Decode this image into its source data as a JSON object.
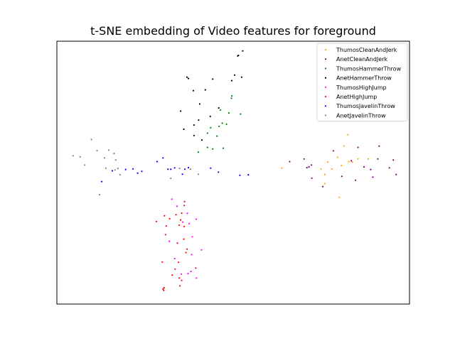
{
  "chart_data": {
    "type": "scatter",
    "title": "t-SNE embedding of Video features for foreground",
    "xlabel": "",
    "ylabel": "",
    "xlim": [
      0,
      100
    ],
    "ylim": [
      0,
      100
    ],
    "axis_ticks": false,
    "grid": false,
    "legend_placement": "top-right",
    "series": [
      {
        "name": "ThumosCleanAndJerk",
        "color": "#ffa500",
        "points": [
          [
            76.8,
            54.0
          ],
          [
            80.7,
            52.7
          ],
          [
            83.8,
            54.0
          ],
          [
            74.9,
            51.4
          ],
          [
            79.6,
            55.8
          ],
          [
            76.0,
            49.3
          ],
          [
            82.5,
            64.4
          ],
          [
            85.4,
            55.2
          ],
          [
            82.8,
            54.2
          ],
          [
            88.3,
            55.2
          ],
          [
            80.1,
            40.6
          ],
          [
            76.0,
            45.8
          ],
          [
            63.8,
            51.7
          ],
          [
            81.4,
            60.2
          ],
          [
            78.0,
            51.4
          ]
        ]
      },
      {
        "name": "AnetCleanAndJerk",
        "color": "#800080",
        "points": [
          [
            70.1,
            55.2
          ],
          [
            66.0,
            54.2
          ],
          [
            71.5,
            52.2
          ],
          [
            78.4,
            58.3
          ],
          [
            85.4,
            59.6
          ],
          [
            89.6,
            48.3
          ],
          [
            91.0,
            55.2
          ],
          [
            96.2,
            49.3
          ],
          [
            89.0,
            51.2
          ],
          [
            83.5,
            54.5
          ],
          [
            91.4,
            60.1
          ],
          [
            94.3,
            51.8
          ],
          [
            72.2,
            52.9
          ],
          [
            75.4,
            44.7
          ],
          [
            80.8,
            48.6
          ],
          [
            95.4,
            54.8
          ],
          [
            87.1,
            52.2
          ],
          [
            70.9,
            51.9
          ],
          [
            84.7,
            47.1
          ],
          [
            72.3,
            47.9
          ]
        ]
      },
      {
        "name": "ThumosHammerThrow",
        "color": "#008000",
        "points": [
          [
            46.4,
            73.8
          ],
          [
            52.1,
            72.3
          ],
          [
            48.8,
            72.7
          ],
          [
            45.4,
            63.9
          ],
          [
            42.7,
            65.0
          ],
          [
            46.0,
            67.6
          ],
          [
            42.7,
            59.6
          ],
          [
            44.2,
            59.0
          ],
          [
            48.1,
            68.4
          ],
          [
            46.9,
            68.8
          ],
          [
            43.6,
            67.1
          ],
          [
            40.1,
            57.8
          ],
          [
            49.5,
            78.3
          ],
          [
            49.6,
            79.2
          ],
          [
            47.2,
            59.3
          ]
        ]
      },
      {
        "name": "AnetHammerThrow",
        "color": "#000000",
        "points": [
          [
            51.3,
            94.4
          ],
          [
            51.5,
            94.6
          ],
          [
            52.7,
            96.3
          ],
          [
            36.9,
            86.3
          ],
          [
            37.3,
            85.8
          ],
          [
            44.2,
            85.6
          ],
          [
            49.6,
            85.0
          ],
          [
            50.4,
            87.1
          ],
          [
            52.4,
            86.3
          ],
          [
            42.1,
            81.5
          ],
          [
            38.7,
            81.2
          ],
          [
            40.5,
            76.1
          ],
          [
            45.9,
            74.6
          ],
          [
            38.9,
            68.1
          ],
          [
            40.2,
            70.0
          ],
          [
            35.1,
            73.4
          ],
          [
            36.0,
            66.5
          ],
          [
            38.9,
            64.1
          ],
          [
            43.5,
            71.4
          ],
          [
            41.1,
            62.4
          ]
        ]
      },
      {
        "name": "ThumosHighJump",
        "color": "#ff00ff",
        "points": [
          [
            32.6,
            39.9
          ],
          [
            34.1,
            37.2
          ],
          [
            39.5,
            32.3
          ],
          [
            37.5,
            30.6
          ],
          [
            31.9,
            23.9
          ],
          [
            33.4,
            17.3
          ],
          [
            35.3,
            11.4
          ],
          [
            38.0,
            12.4
          ],
          [
            39.6,
            9.9
          ],
          [
            37.2,
            11.6
          ],
          [
            41.0,
            20.6
          ],
          [
            38.2,
            18.8
          ],
          [
            38.4,
            25.6
          ],
          [
            35.7,
            31.2
          ],
          [
            37.0,
            34.5
          ]
        ]
      },
      {
        "name": "AnetHighJump",
        "color": "#ff0000",
        "points": [
          [
            30.5,
            33.6
          ],
          [
            28.2,
            31.4
          ],
          [
            31.0,
            29.7
          ],
          [
            35.4,
            34.6
          ],
          [
            36.1,
            37.5
          ],
          [
            32.0,
            32.5
          ],
          [
            33.8,
            34.0
          ],
          [
            34.7,
            30.0
          ],
          [
            35.1,
            32.0
          ],
          [
            36.2,
            39.0
          ],
          [
            30.8,
            26.4
          ],
          [
            36.0,
            24.7
          ],
          [
            36.1,
            29.5
          ],
          [
            34.2,
            23.2
          ],
          [
            36.6,
            19.6
          ],
          [
            36.9,
            20.9
          ],
          [
            29.9,
            16.0
          ],
          [
            34.5,
            15.9
          ],
          [
            39.4,
            13.7
          ],
          [
            30.4,
            6.2
          ],
          [
            34.7,
            9.9
          ],
          [
            33.5,
            13.3
          ],
          [
            32.7,
            11.0
          ],
          [
            35.4,
            9.0
          ],
          [
            30.3,
            5.2
          ],
          [
            30.1,
            5.7
          ],
          [
            34.9,
            6.9
          ]
        ]
      },
      {
        "name": "ThumosJavelinThrow",
        "color": "#0000ff",
        "points": [
          [
            19.5,
            51.2
          ],
          [
            24.1,
            50.5
          ],
          [
            21.6,
            51.4
          ],
          [
            15.7,
            50.7
          ],
          [
            12.7,
            46.6
          ],
          [
            22.9,
            49.8
          ],
          [
            28.4,
            54.2
          ],
          [
            30.1,
            55.6
          ],
          [
            31.5,
            51.3
          ],
          [
            32.3,
            51.3
          ],
          [
            33.4,
            51.8
          ],
          [
            35.6,
            49.4
          ],
          [
            36.3,
            51.3
          ],
          [
            37.3,
            51.9
          ],
          [
            43.6,
            51.7
          ],
          [
            45.8,
            50.2
          ],
          [
            51.9,
            49.0
          ],
          [
            54.3,
            49.2
          ]
        ]
      },
      {
        "name": "AnetJavelinThrow",
        "color": "#808080",
        "points": [
          [
            4.6,
            56.4
          ],
          [
            6.6,
            56.0
          ],
          [
            7.9,
            52.9
          ],
          [
            9.8,
            62.6
          ],
          [
            11.4,
            58.4
          ],
          [
            13.5,
            55.6
          ],
          [
            14.7,
            58.6
          ],
          [
            16.2,
            57.3
          ],
          [
            16.7,
            54.8
          ],
          [
            17.3,
            51.6
          ],
          [
            17.9,
            49.2
          ],
          [
            16.5,
            51.0
          ],
          [
            13.9,
            51.7
          ],
          [
            12.1,
            41.6
          ],
          [
            32.3,
            47.8
          ],
          [
            37.9,
            51.3
          ],
          [
            34.8,
            51.6
          ],
          [
            40.1,
            49.4
          ]
        ]
      }
    ]
  }
}
